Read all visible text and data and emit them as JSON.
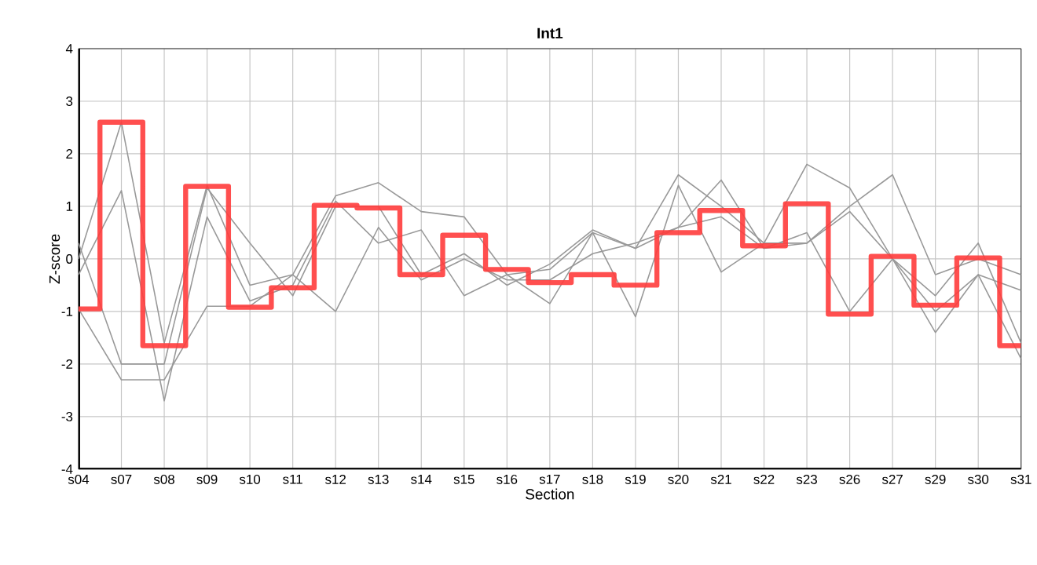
{
  "chart_data": {
    "type": "line",
    "title": "Int1",
    "xlabel": "Section",
    "ylabel": "Z-score",
    "categories": [
      "s04",
      "s07",
      "s08",
      "s09",
      "s10",
      "s11",
      "s12",
      "s13",
      "s14",
      "s15",
      "s16",
      "s17",
      "s18",
      "s19",
      "s20",
      "s21",
      "s22",
      "s23",
      "s26",
      "s27",
      "s29",
      "s30",
      "s31"
    ],
    "ylim": [
      -4,
      4
    ],
    "yticks": [
      -4,
      -3,
      -2,
      -1,
      0,
      1,
      2,
      3,
      4
    ],
    "grid": true,
    "marker": "none",
    "line_style": "solid",
    "series": [
      {
        "color": "#999999",
        "values": [
          0.0,
          2.6,
          -1.6,
          1.4,
          -0.5,
          -0.3,
          1.2,
          1.45,
          0.9,
          0.8,
          -0.3,
          -0.2,
          0.5,
          0.2,
          1.6,
          1.0,
          0.3,
          0.3,
          1.0,
          1.6,
          -0.3,
          0.0,
          -0.3
        ]
      },
      {
        "color": "#999999",
        "values": [
          -0.3,
          1.3,
          -2.7,
          0.8,
          -0.8,
          -0.5,
          1.1,
          0.3,
          0.55,
          -0.7,
          -0.3,
          -0.85,
          0.5,
          -1.1,
          1.4,
          -0.25,
          0.3,
          1.8,
          1.35,
          0.0,
          -1.4,
          -0.3,
          -0.6
        ]
      },
      {
        "color": "#999999",
        "values": [
          0.3,
          -2.0,
          -2.0,
          1.35,
          0.3,
          -0.7,
          1.0,
          1.0,
          -0.3,
          0.1,
          -0.5,
          -0.1,
          0.55,
          0.2,
          0.6,
          1.5,
          0.2,
          0.5,
          -1.0,
          0.0,
          -1.0,
          -0.3,
          -1.9
        ]
      },
      {
        "color": "#999999",
        "values": [
          -0.95,
          -2.3,
          -2.3,
          -0.9,
          -0.9,
          -0.3,
          -1.0,
          0.6,
          -0.4,
          0.0,
          -0.4,
          -0.4,
          0.1,
          0.3,
          0.6,
          0.8,
          0.2,
          0.3,
          0.9,
          0.0,
          -0.7,
          0.3,
          -1.6
        ]
      },
      {
        "type": "step",
        "color": "#ff3c3c",
        "values": [
          -0.95,
          2.6,
          -1.65,
          1.38,
          -0.92,
          -0.55,
          1.02,
          0.97,
          -0.3,
          0.45,
          -0.2,
          -0.45,
          -0.3,
          -0.5,
          0.5,
          0.92,
          0.25,
          1.05,
          -1.05,
          0.05,
          -0.88,
          0.02,
          -1.65
        ]
      }
    ]
  }
}
